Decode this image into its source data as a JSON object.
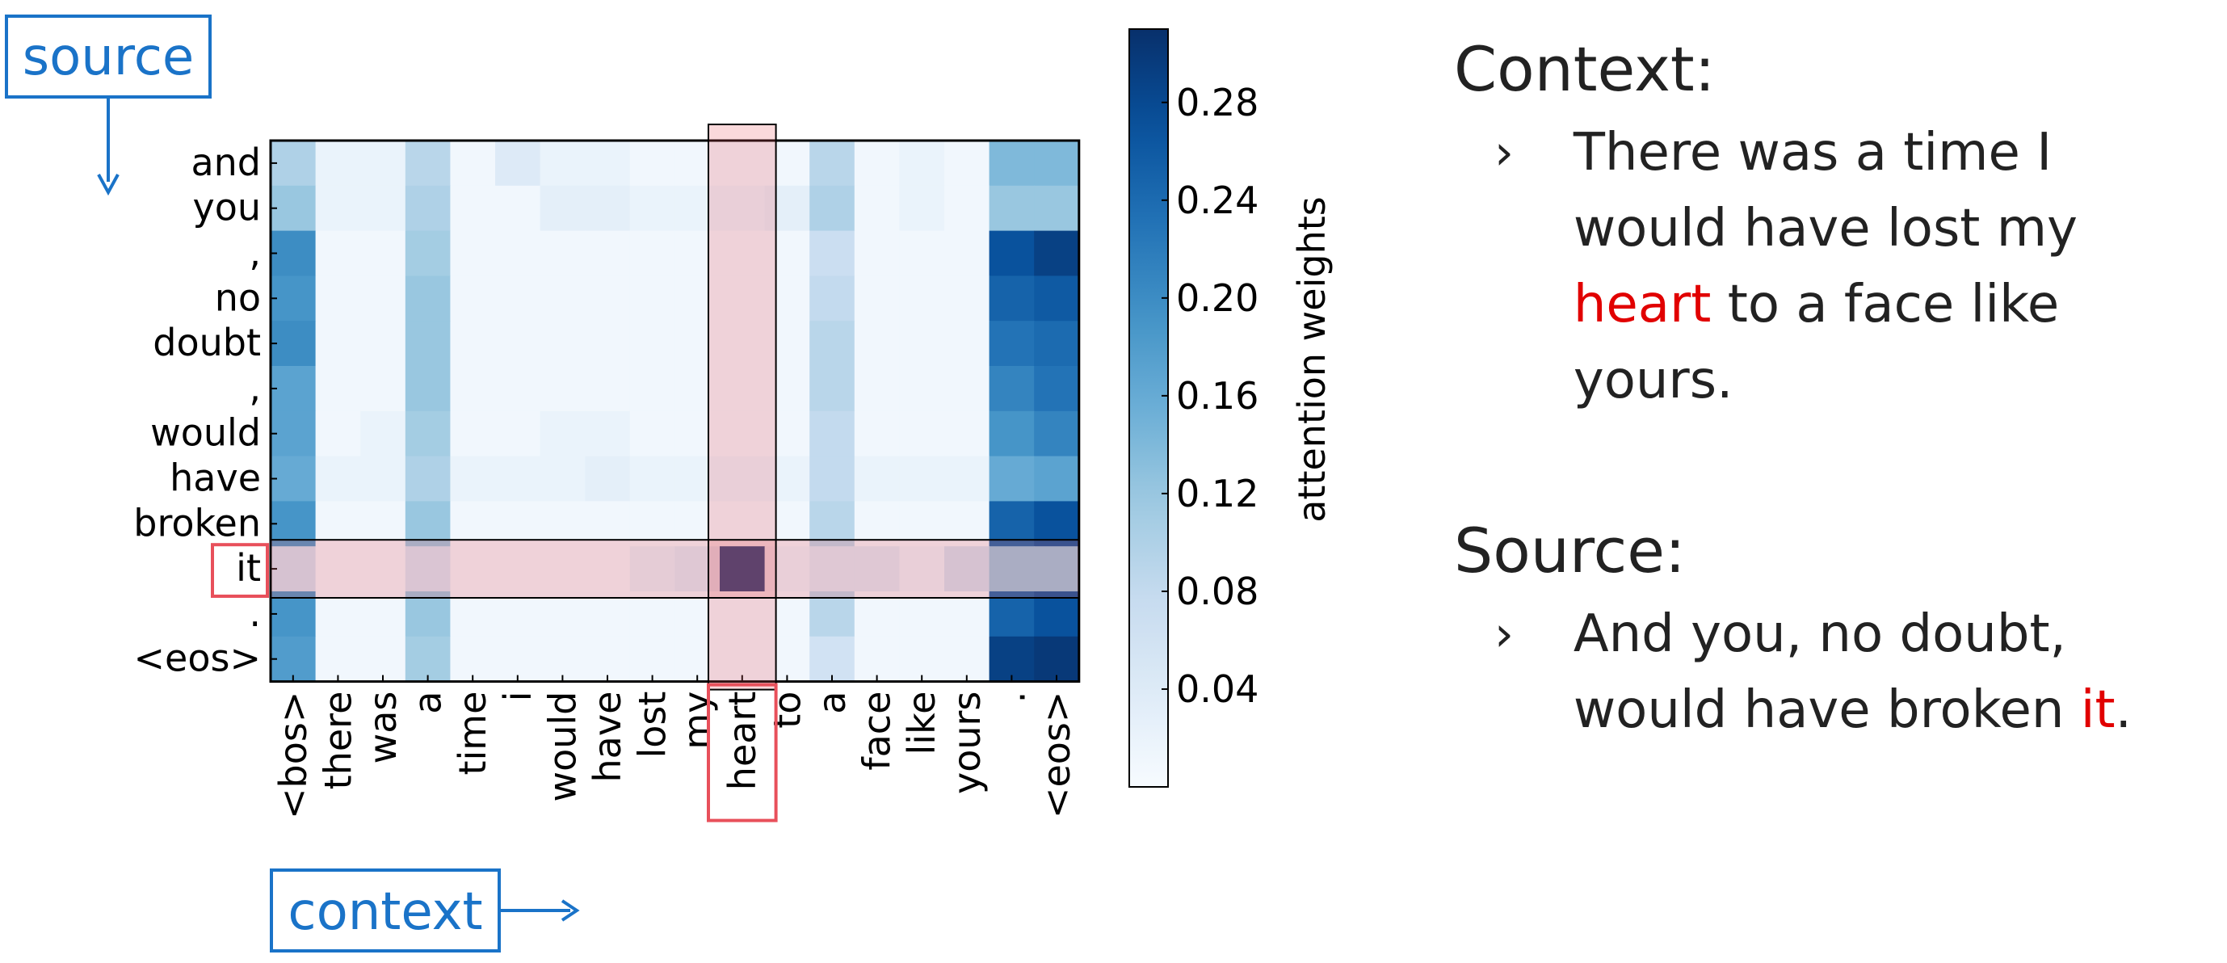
{
  "chart_data": {
    "type": "heatmap",
    "rows": [
      "and",
      "you",
      ",",
      "no",
      "doubt",
      ",",
      "would",
      "have",
      "broken",
      "it",
      ".",
      "<eos>"
    ],
    "columns": [
      "<bos>",
      "there",
      "was",
      "a",
      "time",
      "i",
      "would",
      "have",
      "lost",
      "my",
      "heart",
      "to",
      "a",
      "face",
      "like",
      "yours",
      ".",
      "<eos>"
    ],
    "values": [
      [
        0.1,
        0.02,
        0.02,
        0.09,
        0.01,
        0.04,
        0.02,
        0.02,
        0.01,
        0.01,
        0.01,
        0.01,
        0.09,
        0.01,
        0.02,
        0.01,
        0.14,
        0.14
      ],
      [
        0.12,
        0.02,
        0.02,
        0.1,
        0.01,
        0.01,
        0.03,
        0.03,
        0.02,
        0.02,
        0.02,
        0.03,
        0.1,
        0.01,
        0.02,
        0.01,
        0.12,
        0.12
      ],
      [
        0.2,
        0.01,
        0.01,
        0.11,
        0.01,
        0.01,
        0.01,
        0.01,
        0.01,
        0.01,
        0.01,
        0.01,
        0.07,
        0.01,
        0.01,
        0.01,
        0.27,
        0.29
      ],
      [
        0.19,
        0.01,
        0.01,
        0.12,
        0.01,
        0.01,
        0.01,
        0.01,
        0.01,
        0.01,
        0.01,
        0.01,
        0.08,
        0.01,
        0.01,
        0.01,
        0.25,
        0.26
      ],
      [
        0.2,
        0.01,
        0.01,
        0.12,
        0.01,
        0.01,
        0.01,
        0.01,
        0.01,
        0.01,
        0.01,
        0.01,
        0.09,
        0.01,
        0.01,
        0.01,
        0.23,
        0.24
      ],
      [
        0.17,
        0.01,
        0.01,
        0.12,
        0.01,
        0.01,
        0.01,
        0.01,
        0.01,
        0.01,
        0.01,
        0.01,
        0.09,
        0.01,
        0.01,
        0.01,
        0.21,
        0.23
      ],
      [
        0.17,
        0.01,
        0.02,
        0.11,
        0.01,
        0.01,
        0.02,
        0.02,
        0.01,
        0.01,
        0.01,
        0.01,
        0.08,
        0.01,
        0.01,
        0.01,
        0.19,
        0.21
      ],
      [
        0.16,
        0.02,
        0.02,
        0.1,
        0.02,
        0.02,
        0.02,
        0.03,
        0.02,
        0.02,
        0.02,
        0.02,
        0.08,
        0.02,
        0.02,
        0.02,
        0.16,
        0.17
      ],
      [
        0.19,
        0.01,
        0.01,
        0.12,
        0.01,
        0.01,
        0.01,
        0.01,
        0.01,
        0.01,
        0.01,
        0.01,
        0.09,
        0.01,
        0.01,
        0.01,
        0.25,
        0.27
      ],
      [
        0.06,
        0.01,
        0.01,
        0.05,
        0.01,
        0.01,
        0.01,
        0.01,
        0.03,
        0.04,
        0.3,
        0.02,
        0.04,
        0.04,
        0.02,
        0.06,
        0.12,
        0.12
      ],
      [
        0.19,
        0.01,
        0.01,
        0.12,
        0.01,
        0.01,
        0.01,
        0.01,
        0.01,
        0.01,
        0.01,
        0.01,
        0.09,
        0.01,
        0.01,
        0.01,
        0.25,
        0.27
      ],
      [
        0.18,
        0.01,
        0.01,
        0.11,
        0.01,
        0.01,
        0.01,
        0.01,
        0.01,
        0.01,
        0.01,
        0.01,
        0.06,
        0.01,
        0.01,
        0.01,
        0.29,
        0.3
      ]
    ],
    "colormap": "Blues",
    "colorbar": {
      "label": "attention weights",
      "ticks": [
        0.04,
        0.08,
        0.12,
        0.16,
        0.2,
        0.24,
        0.28
      ],
      "range": [
        0.0,
        0.31
      ]
    },
    "highlight": {
      "row": "it",
      "column": "heart",
      "color": "#e8505b"
    },
    "annotations": {
      "source_label": "source",
      "context_label": "context"
    },
    "annotation_color": "#1a73c8"
  },
  "panel": {
    "context_title": "Context:",
    "bullet": "›",
    "context_before": "There was a time I would have lost my ",
    "context_highlight": "heart",
    "context_after": " to a face like yours.",
    "source_title": "Source:",
    "source_before": "And you, no doubt, would have broken ",
    "source_highlight": "it",
    "source_after": "."
  }
}
